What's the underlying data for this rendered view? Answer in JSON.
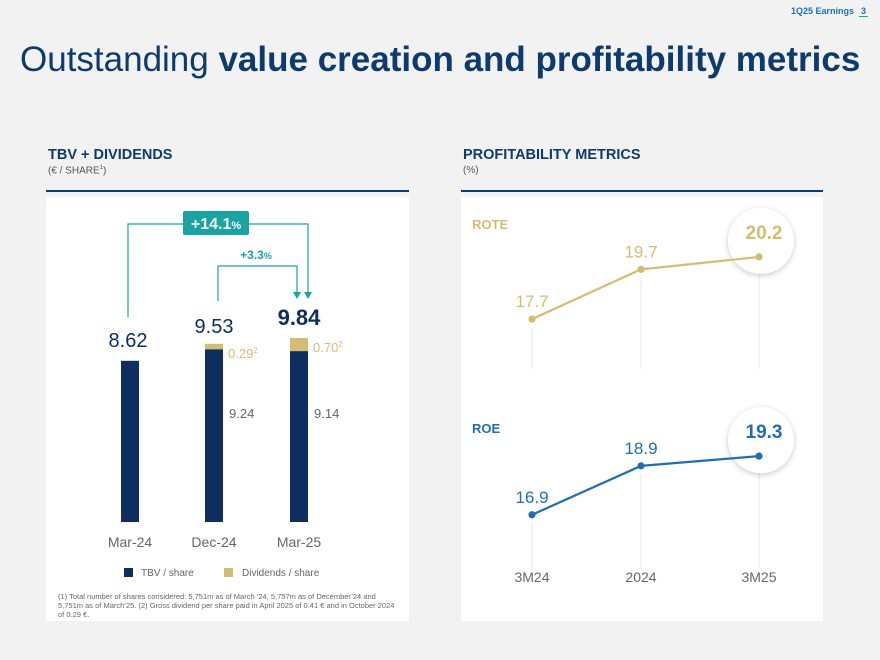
{
  "header": {
    "label": "1Q25 Earnings",
    "page": "3"
  },
  "title": {
    "regular": "Outstanding ",
    "bold": "value creation and profitability metrics"
  },
  "left": {
    "heading": "TBV + DIVIDENDS",
    "unit": "(€ / SHARE",
    "unit_sup": "1",
    "unit_close": ")"
  },
  "right": {
    "heading": "PROFITABILITY METRICS",
    "unit": "(%)"
  },
  "footnote": "(1) Total number of shares considered: 5,751m as of March ’24, 5,757m as of December’24 and 5,751m as of March’25. (2) Gross dividend per share paid in April 2025 of 0.41 € and in October 2024 of 0.29 €.",
  "colors": {
    "navy": "#0d2e5e",
    "gold": "#d4bd73",
    "teal": "#1aa3a3",
    "blue": "#1f6fb5",
    "grey": "#666666"
  },
  "chart_data": [
    {
      "type": "bar",
      "title": "TBV + DIVIDENDS",
      "ylabel": "€ / share",
      "categories": [
        "Mar-24",
        "Dec-24",
        "Mar-25"
      ],
      "series": [
        {
          "name": "TBV / share",
          "values": [
            8.62,
            9.24,
            9.14
          ]
        },
        {
          "name": "Dividends / share",
          "values": [
            0,
            0.29,
            0.7
          ]
        }
      ],
      "totals": [
        "8.62",
        "9.53",
        "9.84"
      ],
      "tbv_labels": [
        "",
        "9.24",
        "9.14"
      ],
      "div_labels": [
        "",
        "0.29",
        "0.70"
      ],
      "div_sup": "2",
      "annotations": {
        "yoy": "+14.1",
        "yoy_unit": "%",
        "ytd": "+3.3",
        "ytd_unit": "%"
      },
      "legend": [
        "TBV / share",
        "Dividends / share"
      ],
      "ylim": [
        0,
        10.5
      ]
    },
    {
      "type": "line",
      "title": "ROTE",
      "x": [
        "3M24",
        "2024",
        "3M25"
      ],
      "values": [
        17.7,
        19.7,
        20.2
      ],
      "labels": [
        "17.7",
        "19.7",
        "20.2"
      ],
      "ylim": [
        16.5,
        21.0
      ]
    },
    {
      "type": "line",
      "title": "ROE",
      "x": [
        "3M24",
        "2024",
        "3M25"
      ],
      "values": [
        16.9,
        18.9,
        19.3
      ],
      "labels": [
        "16.9",
        "18.9",
        "19.3"
      ],
      "ylim": [
        15.5,
        20.0
      ]
    }
  ]
}
